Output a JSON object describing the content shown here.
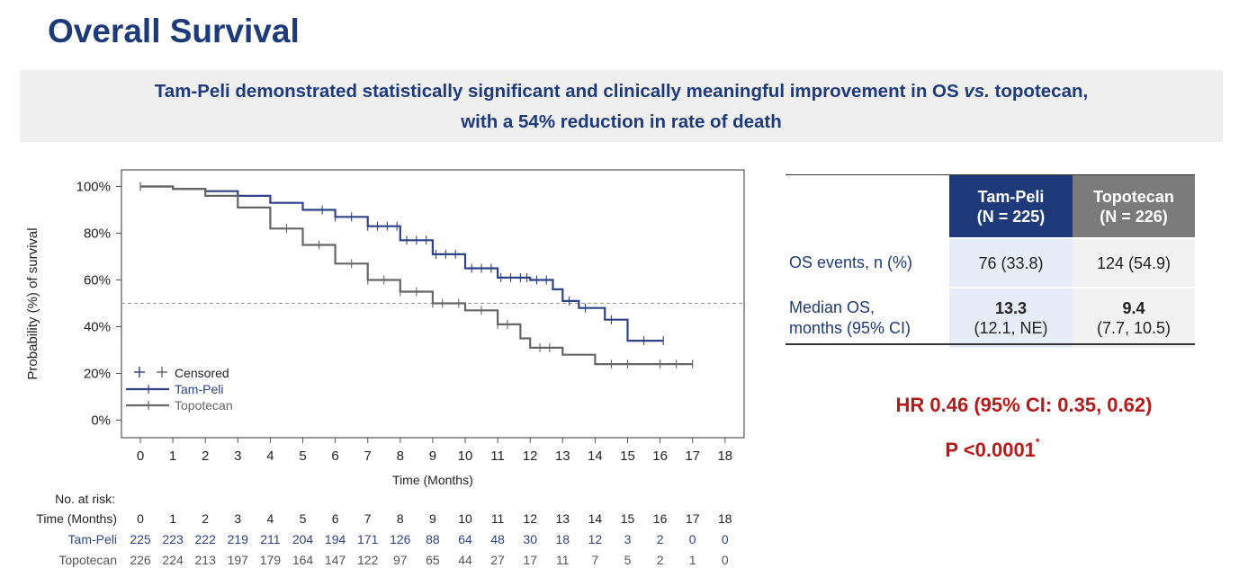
{
  "title": "Overall Survival",
  "banner": {
    "line1_a": "Tam-Peli demonstrated statistically significant and clinically meaningful improvement in OS ",
    "line1_em": "vs.",
    "line1_b": " topotecan,",
    "line2": "with a 54% reduction in rate of death"
  },
  "chart_data": {
    "type": "line",
    "title": "",
    "xlabel": "Time (Months)",
    "ylabel": "Probability (%) of survival",
    "xlim": [
      0,
      18
    ],
    "ylim": [
      0,
      100
    ],
    "x_ticks": [
      "0",
      "1",
      "2",
      "3",
      "4",
      "5",
      "6",
      "7",
      "8",
      "9",
      "10",
      "11",
      "12",
      "13",
      "14",
      "15",
      "16",
      "17",
      "18"
    ],
    "y_ticks": [
      "0%",
      "20%",
      "40%",
      "60%",
      "80%",
      "100%"
    ],
    "reference_line_y": 50,
    "legend": {
      "position": "bottom-left",
      "censored_label": "Censored",
      "series_labels": [
        "Tam-Peli",
        "Topotecan"
      ]
    },
    "series": [
      {
        "name": "Tam-Peli",
        "color": "#2e4285",
        "points": [
          [
            0,
            100
          ],
          [
            1,
            99
          ],
          [
            2,
            98
          ],
          [
            3,
            96
          ],
          [
            4,
            93
          ],
          [
            5,
            90
          ],
          [
            6,
            87
          ],
          [
            7,
            83
          ],
          [
            8,
            77
          ],
          [
            9,
            71
          ],
          [
            10,
            65
          ],
          [
            11,
            61
          ],
          [
            12,
            60
          ],
          [
            12.7,
            56
          ],
          [
            13,
            51
          ],
          [
            13.5,
            48
          ],
          [
            14,
            48
          ],
          [
            14.3,
            43
          ],
          [
            14.9,
            43
          ],
          [
            15,
            34
          ],
          [
            16.1,
            34
          ]
        ],
        "censored": [
          0,
          5.6,
          6,
          6.5,
          7,
          7.3,
          7.6,
          7.9,
          8.2,
          8.5,
          8.8,
          9.1,
          9.4,
          9.7,
          10.2,
          10.5,
          10.8,
          11.1,
          11.4,
          11.7,
          11.9,
          12.2,
          12.5,
          13.2,
          13.7,
          14.5,
          15.5,
          16.1
        ]
      },
      {
        "name": "Topotecan",
        "color": "#666666",
        "points": [
          [
            0,
            100
          ],
          [
            1,
            99
          ],
          [
            2,
            96
          ],
          [
            3,
            91
          ],
          [
            4,
            82
          ],
          [
            5,
            75
          ],
          [
            6,
            67
          ],
          [
            7,
            60
          ],
          [
            8,
            55
          ],
          [
            9,
            50
          ],
          [
            10,
            47
          ],
          [
            11,
            41
          ],
          [
            11.7,
            35
          ],
          [
            12,
            31
          ],
          [
            12.8,
            31
          ],
          [
            13,
            28
          ],
          [
            13.9,
            28
          ],
          [
            14,
            24
          ],
          [
            17,
            24
          ]
        ],
        "censored": [
          0,
          4.5,
          5.5,
          6.5,
          7,
          7.5,
          8,
          8.5,
          9,
          9.3,
          9.8,
          10.5,
          11,
          11.3,
          12.3,
          12.6,
          14.5,
          15,
          16,
          16.5,
          17
        ]
      }
    ],
    "risk_table": {
      "header": "No. at risk:",
      "time_label": "Time (Months)",
      "times": [
        "0",
        "1",
        "2",
        "3",
        "4",
        "5",
        "6",
        "7",
        "8",
        "9",
        "10",
        "11",
        "12",
        "13",
        "14",
        "15",
        "16",
        "17",
        "18"
      ],
      "rows": [
        {
          "name": "Tam-Peli",
          "color": "#2e4285",
          "values": [
            "225",
            "223",
            "222",
            "219",
            "211",
            "204",
            "194",
            "171",
            "126",
            "88",
            "64",
            "48",
            "30",
            "18",
            "12",
            "3",
            "2",
            "0",
            "0"
          ]
        },
        {
          "name": "Topotecan",
          "color": "#555555",
          "values": [
            "226",
            "224",
            "213",
            "197",
            "179",
            "164",
            "147",
            "122",
            "97",
            "65",
            "44",
            "27",
            "17",
            "11",
            "7",
            "5",
            "2",
            "1",
            "0"
          ]
        }
      ]
    }
  },
  "table": {
    "header": {
      "col1_line1": "Tam-Peli",
      "col1_line2": "(N = 225)",
      "col2_line1": "Topotecan",
      "col2_line2": "(N = 226)"
    },
    "row1": {
      "label": "OS events, n (%)",
      "v1": "76 (33.8)",
      "v2": "124 (54.9)"
    },
    "row2": {
      "label_line1": "Median OS,",
      "label_line2": "months (95% CI)",
      "v1_main": "13.3",
      "v1_ci": "(12.1, NE)",
      "v2_main": "9.4",
      "v2_ci": "(7.7, 10.5)"
    }
  },
  "hr": "HR 0.46 (95% CI: 0.35, 0.62)",
  "p_value": "P <0.0001",
  "p_footnote": "*",
  "colors": {
    "navy": "#1f3a7a",
    "red": "#b31b1b",
    "grey_header": "#7b7b7b"
  }
}
